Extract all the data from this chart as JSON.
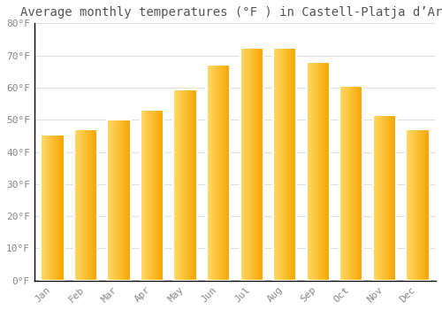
{
  "title": "Average monthly temperatures (°F ) in Castell-Platja d’Aro",
  "months": [
    "Jan",
    "Feb",
    "Mar",
    "Apr",
    "May",
    "Jun",
    "Jul",
    "Aug",
    "Sep",
    "Oct",
    "Nov",
    "Dec"
  ],
  "values": [
    45.5,
    47.0,
    50.0,
    53.0,
    59.5,
    67.0,
    72.5,
    72.5,
    68.0,
    60.5,
    51.5,
    47.0
  ],
  "bar_color_left": "#FFD966",
  "bar_color_right": "#F5A500",
  "ylim": [
    0,
    80
  ],
  "yticks": [
    0,
    10,
    20,
    30,
    40,
    50,
    60,
    70,
    80
  ],
  "ytick_labels": [
    "0°F",
    "10°F",
    "20°F",
    "30°F",
    "40°F",
    "50°F",
    "60°F",
    "70°F",
    "80°F"
  ],
  "background_color": "#FFFFFF",
  "plot_bg_color": "#FFFFFF",
  "grid_color": "#E0E0E0",
  "spine_color": "#000000",
  "title_fontsize": 10,
  "tick_fontsize": 8,
  "title_color": "#555555",
  "tick_color": "#888888"
}
